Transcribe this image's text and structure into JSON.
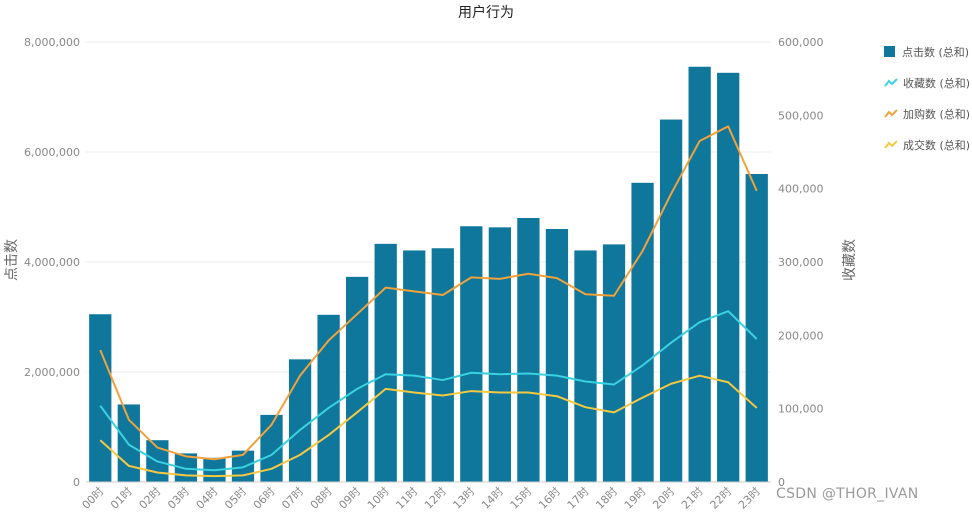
{
  "colors": {
    "clicks": "#0f769c",
    "collect": "#3ad1e0",
    "cart": "#f0a23c",
    "buy": "#f5c842",
    "grid": "#eeeeee",
    "axis": "#cccccc"
  },
  "legend": [
    {
      "name": "点击数 (总和)",
      "icon": "square-icon",
      "color": "#0f769c"
    },
    {
      "name": "收藏数 (总和)",
      "icon": "line-icon",
      "color": "#3ad1e0"
    },
    {
      "name": "加购数 (总和)",
      "icon": "line-icon",
      "color": "#f0a23c"
    },
    {
      "name": "成交数 (总和)",
      "icon": "line-icon",
      "color": "#f5c842"
    }
  ],
  "watermark": "CSDN @THOR_IVAN",
  "chart_data": {
    "type": "bar",
    "title": "用户行为",
    "xlabel": "",
    "ylabel": "点击数",
    "y2label": "收藏数",
    "categories": [
      "00时",
      "01时",
      "02时",
      "03时",
      "04时",
      "05时",
      "06时",
      "07时",
      "08时",
      "09时",
      "10时",
      "11时",
      "12时",
      "13时",
      "14时",
      "15时",
      "16时",
      "17时",
      "18时",
      "19时",
      "20时",
      "21时",
      "22时",
      "23时"
    ],
    "ylim": [
      0,
      8000000
    ],
    "yticks": [
      "0",
      "2,000,000",
      "4,000,000",
      "6,000,000",
      "8,000,000"
    ],
    "y2lim": [
      0,
      600000
    ],
    "y2ticks": [
      "0",
      "100,000",
      "200,000",
      "300,000",
      "400,000",
      "500,000",
      "600,000"
    ],
    "grid": true,
    "legend_position": "top-right",
    "series": [
      {
        "name": "点击数 (总和)",
        "type": "bar",
        "axis": "left",
        "values": [
          3050000,
          1410000,
          760000,
          520000,
          440000,
          570000,
          1220000,
          2230000,
          3040000,
          3730000,
          4330000,
          4210000,
          4250000,
          4650000,
          4630000,
          4800000,
          4600000,
          4210000,
          4320000,
          5440000,
          6590000,
          7550000,
          7440000,
          5600000
        ]
      },
      {
        "name": "收藏数 (总和)",
        "type": "line",
        "axis": "right",
        "values": [
          104000,
          51000,
          28000,
          18000,
          16000,
          20000,
          37000,
          71000,
          101000,
          127000,
          147000,
          145000,
          139000,
          149000,
          147000,
          148000,
          145000,
          137000,
          133000,
          159000,
          190000,
          218000,
          233000,
          195000
        ]
      },
      {
        "name": "加购数 (总和)",
        "type": "line",
        "axis": "right",
        "values": [
          180000,
          85000,
          47000,
          35000,
          31000,
          37000,
          78000,
          145000,
          193000,
          229000,
          265000,
          260000,
          255000,
          279000,
          277000,
          284000,
          278000,
          256000,
          254000,
          315000,
          393000,
          465000,
          485000,
          397000
        ]
      },
      {
        "name": "成交数 (总和)",
        "type": "line",
        "axis": "right",
        "values": [
          57000,
          22000,
          13000,
          9000,
          8000,
          9000,
          18000,
          37000,
          64000,
          95000,
          127000,
          122000,
          118000,
          124000,
          122000,
          122000,
          117000,
          102000,
          95000,
          115000,
          134000,
          145000,
          136000,
          101000
        ]
      }
    ]
  }
}
